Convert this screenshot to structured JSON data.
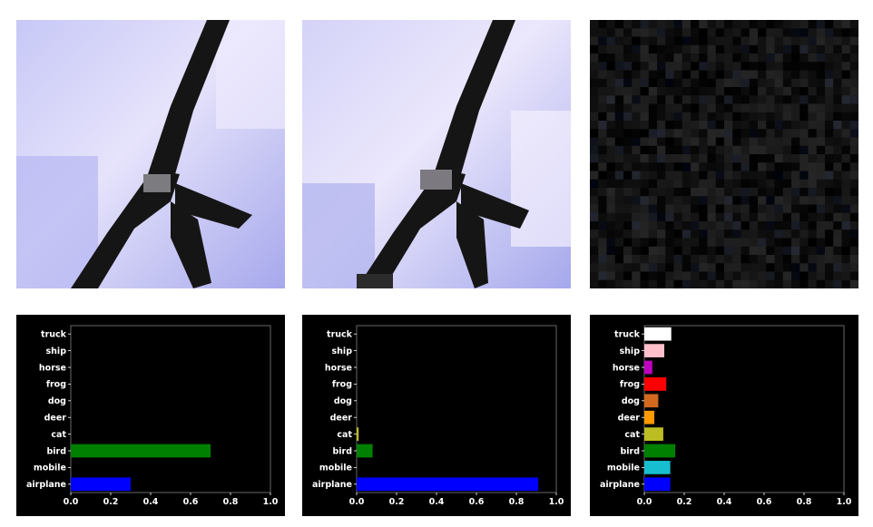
{
  "images": [
    {
      "caption": "",
      "content": "original bird image"
    },
    {
      "caption": "",
      "content": "adversarial bird image"
    },
    {
      "caption": "",
      "content": "perturbation noise"
    }
  ],
  "chart_data": [
    {
      "type": "bar",
      "orientation": "horizontal",
      "categories": [
        "airplane",
        "mobile",
        "bird",
        "cat",
        "deer",
        "dog",
        "frog",
        "horse",
        "ship",
        "truck"
      ],
      "values": [
        0.3,
        0.0,
        0.7,
        0.0,
        0.0,
        0.0,
        0.0,
        0.0,
        0.0,
        0.0
      ],
      "xlim": [
        0,
        1.0
      ],
      "xticks": [
        "0.0",
        "0.2",
        "0.4",
        "0.6",
        "0.8",
        "1.0"
      ],
      "colors": [
        "#0000ff",
        "#17becf",
        "#008000",
        "#bcbd22",
        "#ff9900",
        "#d2691e",
        "#ff0000",
        "#bf00bf",
        "#ffc0cb",
        "#ffffff"
      ],
      "background": "#000000"
    },
    {
      "type": "bar",
      "orientation": "horizontal",
      "categories": [
        "airplane",
        "mobile",
        "bird",
        "cat",
        "deer",
        "dog",
        "frog",
        "horse",
        "ship",
        "truck"
      ],
      "values": [
        0.91,
        0.0,
        0.08,
        0.01,
        0.0,
        0.0,
        0.0,
        0.0,
        0.0,
        0.0
      ],
      "xlim": [
        0,
        1.0
      ],
      "xticks": [
        "0.0",
        "0.2",
        "0.4",
        "0.6",
        "0.8",
        "1.0"
      ],
      "colors": [
        "#0000ff",
        "#17becf",
        "#008000",
        "#bcbd22",
        "#ff9900",
        "#d2691e",
        "#ff0000",
        "#bf00bf",
        "#ffc0cb",
        "#ffffff"
      ],
      "background": "#000000"
    },
    {
      "type": "bar",
      "orientation": "horizontal",
      "categories": [
        "airplane",
        "mobile",
        "bird",
        "cat",
        "deer",
        "dog",
        "frog",
        "horse",
        "ship",
        "truck"
      ],
      "values": [
        0.13,
        0.13,
        0.155,
        0.095,
        0.05,
        0.07,
        0.11,
        0.04,
        0.1,
        0.135
      ],
      "xlim": [
        0,
        1.0
      ],
      "xticks": [
        "0.0",
        "0.2",
        "0.4",
        "0.6",
        "0.8",
        "1.0"
      ],
      "colors": [
        "#0000ff",
        "#17becf",
        "#008000",
        "#bcbd22",
        "#ff9900",
        "#d2691e",
        "#ff0000",
        "#bf00bf",
        "#ffc0cb",
        "#ffffff"
      ],
      "background": "#000000"
    }
  ]
}
